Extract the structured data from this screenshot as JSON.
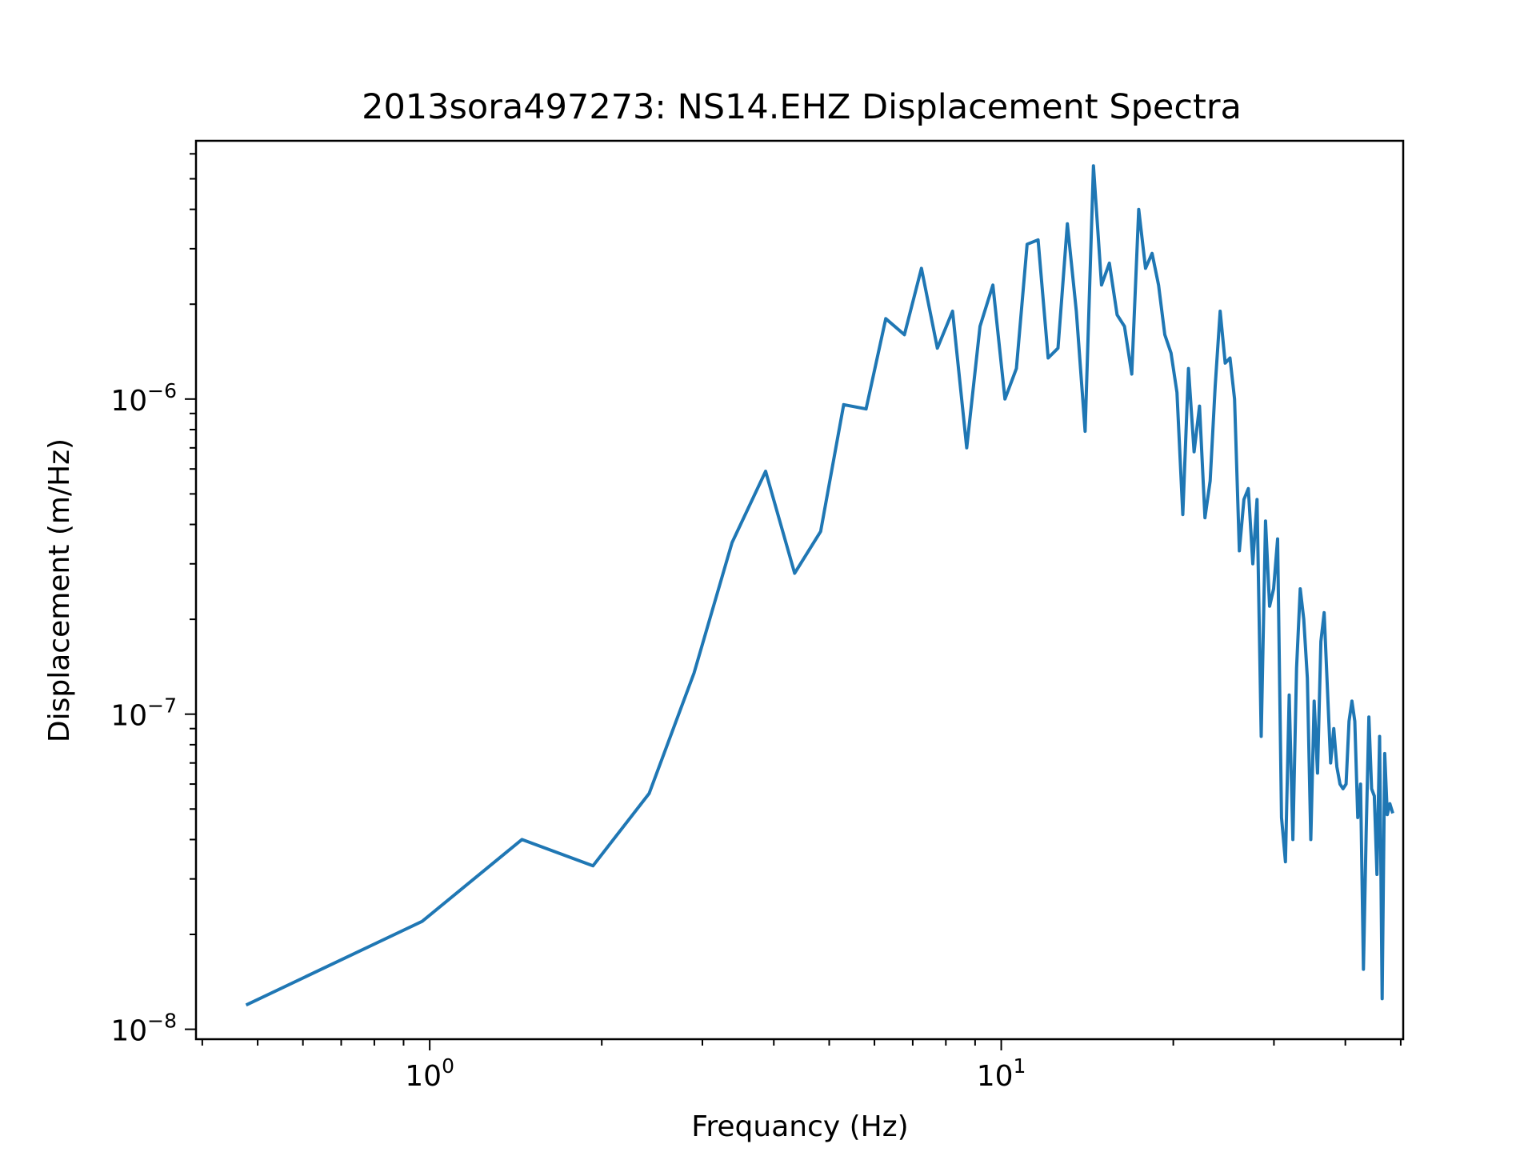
{
  "chart_data": {
    "type": "line",
    "title": "2013sora497273: NS14.EHZ Displacement Spectra",
    "xlabel": "Frequancy (Hz)",
    "ylabel": "Displacement (m/Hz)",
    "xscale": "log",
    "yscale": "log",
    "xlim": [
      0.39,
      50.5
    ],
    "ylim": [
      9.3e-09,
      6.6e-06
    ],
    "grid": false,
    "legend": "none",
    "x_ticks": [
      {
        "value": 1,
        "base": "10",
        "exp": "0"
      },
      {
        "value": 10,
        "base": "10",
        "exp": "1"
      }
    ],
    "y_ticks": [
      {
        "value": 1e-08,
        "base": "10",
        "exp": "−8"
      },
      {
        "value": 1e-07,
        "base": "10",
        "exp": "−7"
      },
      {
        "value": 1e-06,
        "base": "10",
        "exp": "−6"
      }
    ],
    "series": [
      {
        "color": "#1f77b4",
        "x": [
          0.48,
          0.97,
          1.45,
          1.93,
          2.42,
          2.9,
          3.38,
          3.87,
          4.35,
          4.83,
          5.3,
          5.8,
          6.28,
          6.77,
          7.25,
          7.73,
          8.22,
          8.7,
          9.18,
          9.67,
          10.15,
          10.63,
          11.1,
          11.6,
          12.08,
          12.57,
          13.05,
          13.53,
          14.02,
          14.5,
          14.98,
          15.46,
          15.95,
          16.43,
          16.92,
          17.4,
          17.88,
          18.36,
          18.85,
          19.33,
          19.82,
          20.3,
          20.78,
          21.26,
          21.75,
          22.23,
          22.72,
          23.2,
          23.68,
          24.16,
          24.65,
          25.13,
          25.6,
          26.1,
          26.58,
          27.06,
          27.55,
          28.03,
          28.5,
          29.0,
          29.48,
          29.96,
          30.45,
          30.93,
          31.42,
          31.9,
          32.38,
          32.86,
          33.35,
          33.83,
          34.32,
          34.8,
          35.28,
          35.76,
          36.25,
          36.73,
          37.22,
          37.7,
          38.18,
          38.66,
          39.15,
          39.63,
          40.12,
          40.6,
          41.08,
          41.56,
          42.05,
          42.53,
          43.02,
          43.5,
          43.98,
          44.46,
          44.95,
          45.43,
          45.92,
          46.4,
          46.88,
          47.36,
          47.85,
          48.33
        ],
        "y": [
          1.2e-08,
          2.2e-08,
          4e-08,
          3.3e-08,
          5.6e-08,
          1.35e-07,
          3.5e-07,
          5.9e-07,
          2.8e-07,
          3.8e-07,
          9.6e-07,
          9.3e-07,
          1.8e-06,
          1.6e-06,
          2.6e-06,
          1.45e-06,
          1.9e-06,
          7e-07,
          1.7e-06,
          2.3e-06,
          1e-06,
          1.25e-06,
          3.1e-06,
          3.2e-06,
          1.35e-06,
          1.45e-06,
          3.6e-06,
          1.9e-06,
          7.9e-07,
          5.5e-06,
          2.3e-06,
          2.7e-06,
          1.85e-06,
          1.7e-06,
          1.2e-06,
          4e-06,
          2.6e-06,
          2.9e-06,
          2.3e-06,
          1.6e-06,
          1.4e-06,
          1.05e-06,
          4.3e-07,
          1.25e-06,
          6.8e-07,
          9.5e-07,
          4.2e-07,
          5.5e-07,
          1.1e-06,
          1.9e-06,
          1.3e-06,
          1.35e-06,
          1e-06,
          3.3e-07,
          4.8e-07,
          5.2e-07,
          3e-07,
          4.8e-07,
          8.5e-08,
          4.1e-07,
          2.2e-07,
          2.5e-07,
          3.6e-07,
          4.7e-08,
          3.4e-08,
          1.15e-07,
          4e-08,
          1.4e-07,
          2.5e-07,
          2e-07,
          1.3e-07,
          4e-08,
          1.1e-07,
          6.5e-08,
          1.7e-07,
          2.1e-07,
          1.2e-07,
          7e-08,
          9e-08,
          6.8e-08,
          6e-08,
          5.8e-08,
          6e-08,
          9.5e-08,
          1.1e-07,
          9.5e-08,
          4.7e-08,
          6e-08,
          1.55e-08,
          4.2e-08,
          9.8e-08,
          5.8e-08,
          5.5e-08,
          3.1e-08,
          8.5e-08,
          1.25e-08,
          7.5e-08,
          4.8e-08,
          5.2e-08,
          4.9e-08
        ]
      }
    ]
  }
}
